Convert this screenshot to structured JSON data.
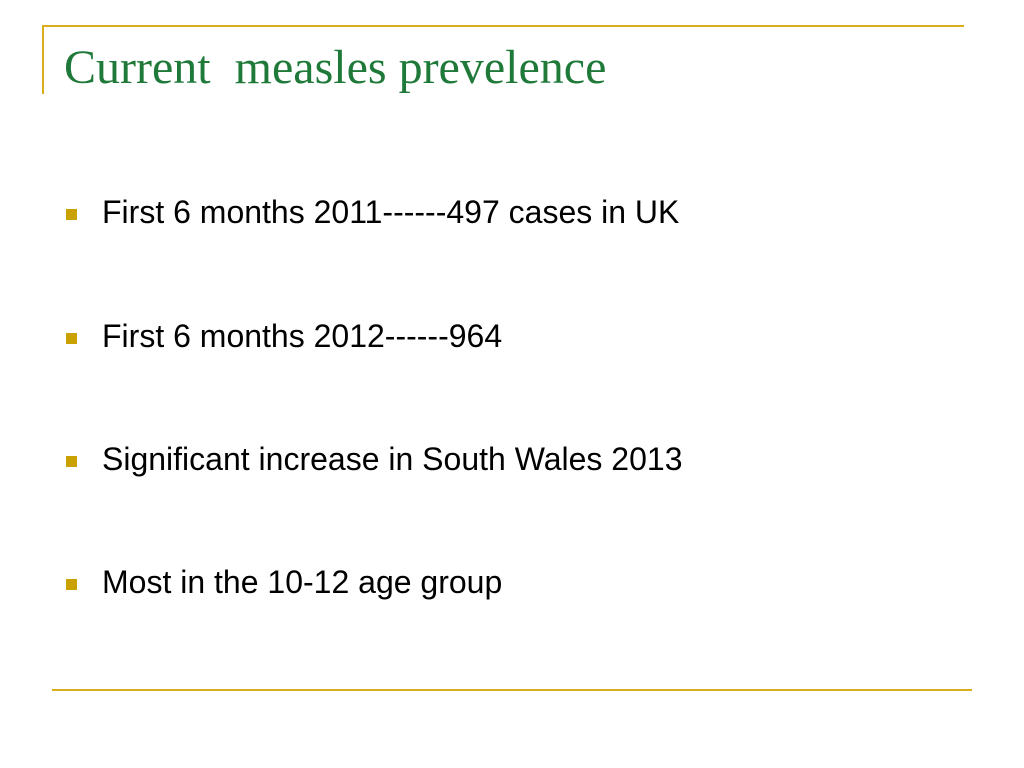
{
  "slide": {
    "title": "Current  measles prevelence",
    "bullets": [
      "First 6 months 2011------497 cases in UK",
      "First 6 months 2012------964",
      "Significant increase in South Wales 2013",
      "Most in the 10-12 age group"
    ]
  }
}
